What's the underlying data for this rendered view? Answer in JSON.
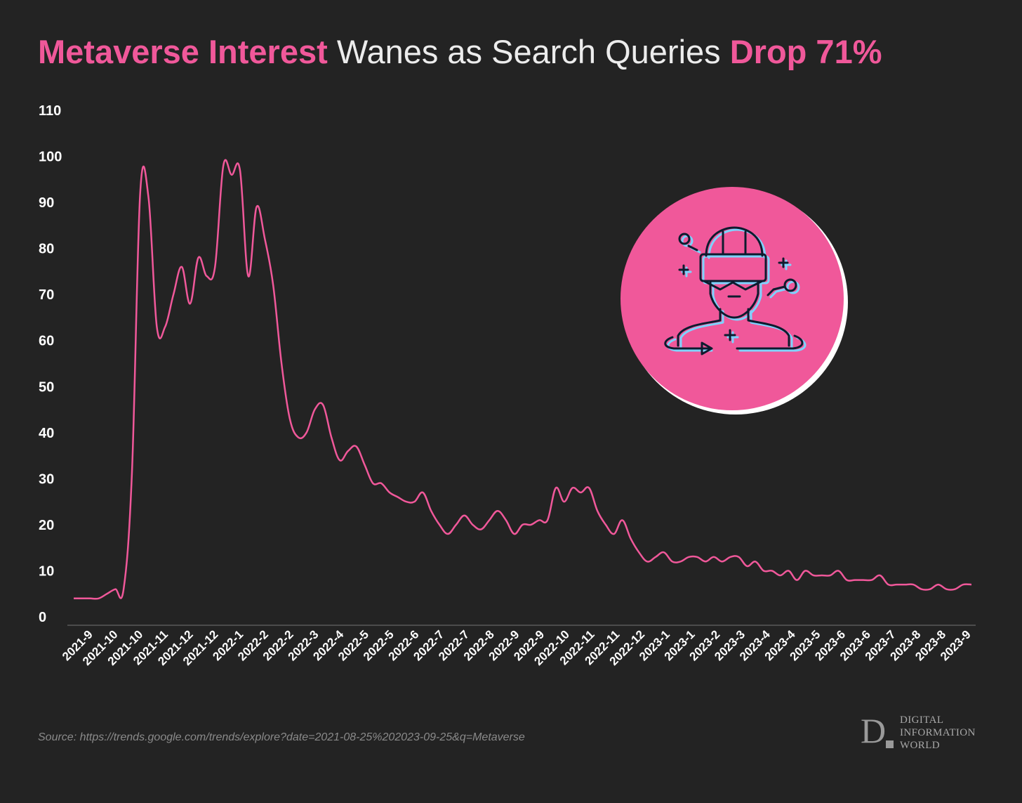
{
  "title": {
    "part1": "Metaverse Interest",
    "part2": " Wanes as Search Queries ",
    "part3": "Drop 71%"
  },
  "source": "Source: https://trends.google.com/trends/explore?date=2021-08-25%202023-09-25&q=Metaverse",
  "logo": {
    "letter": "D",
    "line1": "DIGITAL",
    "line2": "INFORMATION",
    "line3": "WORLD"
  },
  "colors": {
    "background": "#232323",
    "accent": "#f0589a",
    "title_text": "#ececec",
    "axis_text": "#ffffff",
    "icon_stroke": "#0d1b2e",
    "icon_highlight": "#7fd3ff"
  },
  "icon": {
    "name": "vr-headset-person-icon"
  },
  "chart_data": {
    "type": "line",
    "title": "",
    "xlabel": "",
    "ylabel": "",
    "ylim": [
      0,
      110
    ],
    "yticks": [
      0,
      10,
      20,
      30,
      40,
      50,
      60,
      70,
      80,
      90,
      100,
      110
    ],
    "xlim": [
      0,
      108
    ],
    "grid": false,
    "legend": "none",
    "xtick_labels": [
      "2021-9",
      "2021-10",
      "2021-10",
      "2021-11",
      "2021-12",
      "2021-12",
      "2022-1",
      "2022-2",
      "2022-2",
      "2022-3",
      "2022-4",
      "2022-5",
      "2022-5",
      "2022-6",
      "2022-7",
      "2022-7",
      "2022-8",
      "2022-9",
      "2022-9",
      "2022-10",
      "2022-11",
      "2022-11",
      "2022-12",
      "2023-1",
      "2023-1",
      "2023-2",
      "2023-3",
      "2023-4",
      "2023-4",
      "2023-5",
      "2023-6",
      "2023-6",
      "2023-7",
      "2023-8",
      "2023-8",
      "2023-9"
    ],
    "series": [
      {
        "color": "#f0589a",
        "values": [
          4,
          4,
          4,
          4,
          5,
          6,
          6,
          31,
          92,
          91,
          63,
          63,
          70,
          76,
          68,
          78,
          74,
          76,
          98,
          96,
          97,
          74,
          89,
          82,
          72,
          55,
          43,
          39,
          40,
          45,
          46,
          39,
          34,
          36,
          37,
          33,
          29,
          29,
          27,
          26,
          25,
          25,
          27,
          23,
          20,
          18,
          20,
          22,
          20,
          19,
          21,
          23,
          21,
          18,
          20,
          20,
          21,
          21,
          28,
          25,
          28,
          27,
          28,
          23,
          20,
          18,
          21,
          17,
          14,
          12,
          13,
          14,
          12,
          12,
          13,
          13,
          12,
          13,
          12,
          13,
          13,
          11,
          12,
          10,
          10,
          9,
          10,
          8,
          10,
          9,
          9,
          9,
          10,
          8,
          8,
          8,
          8,
          9,
          7,
          7,
          7,
          7,
          6,
          6,
          7,
          6,
          6,
          7,
          7
        ]
      }
    ]
  }
}
